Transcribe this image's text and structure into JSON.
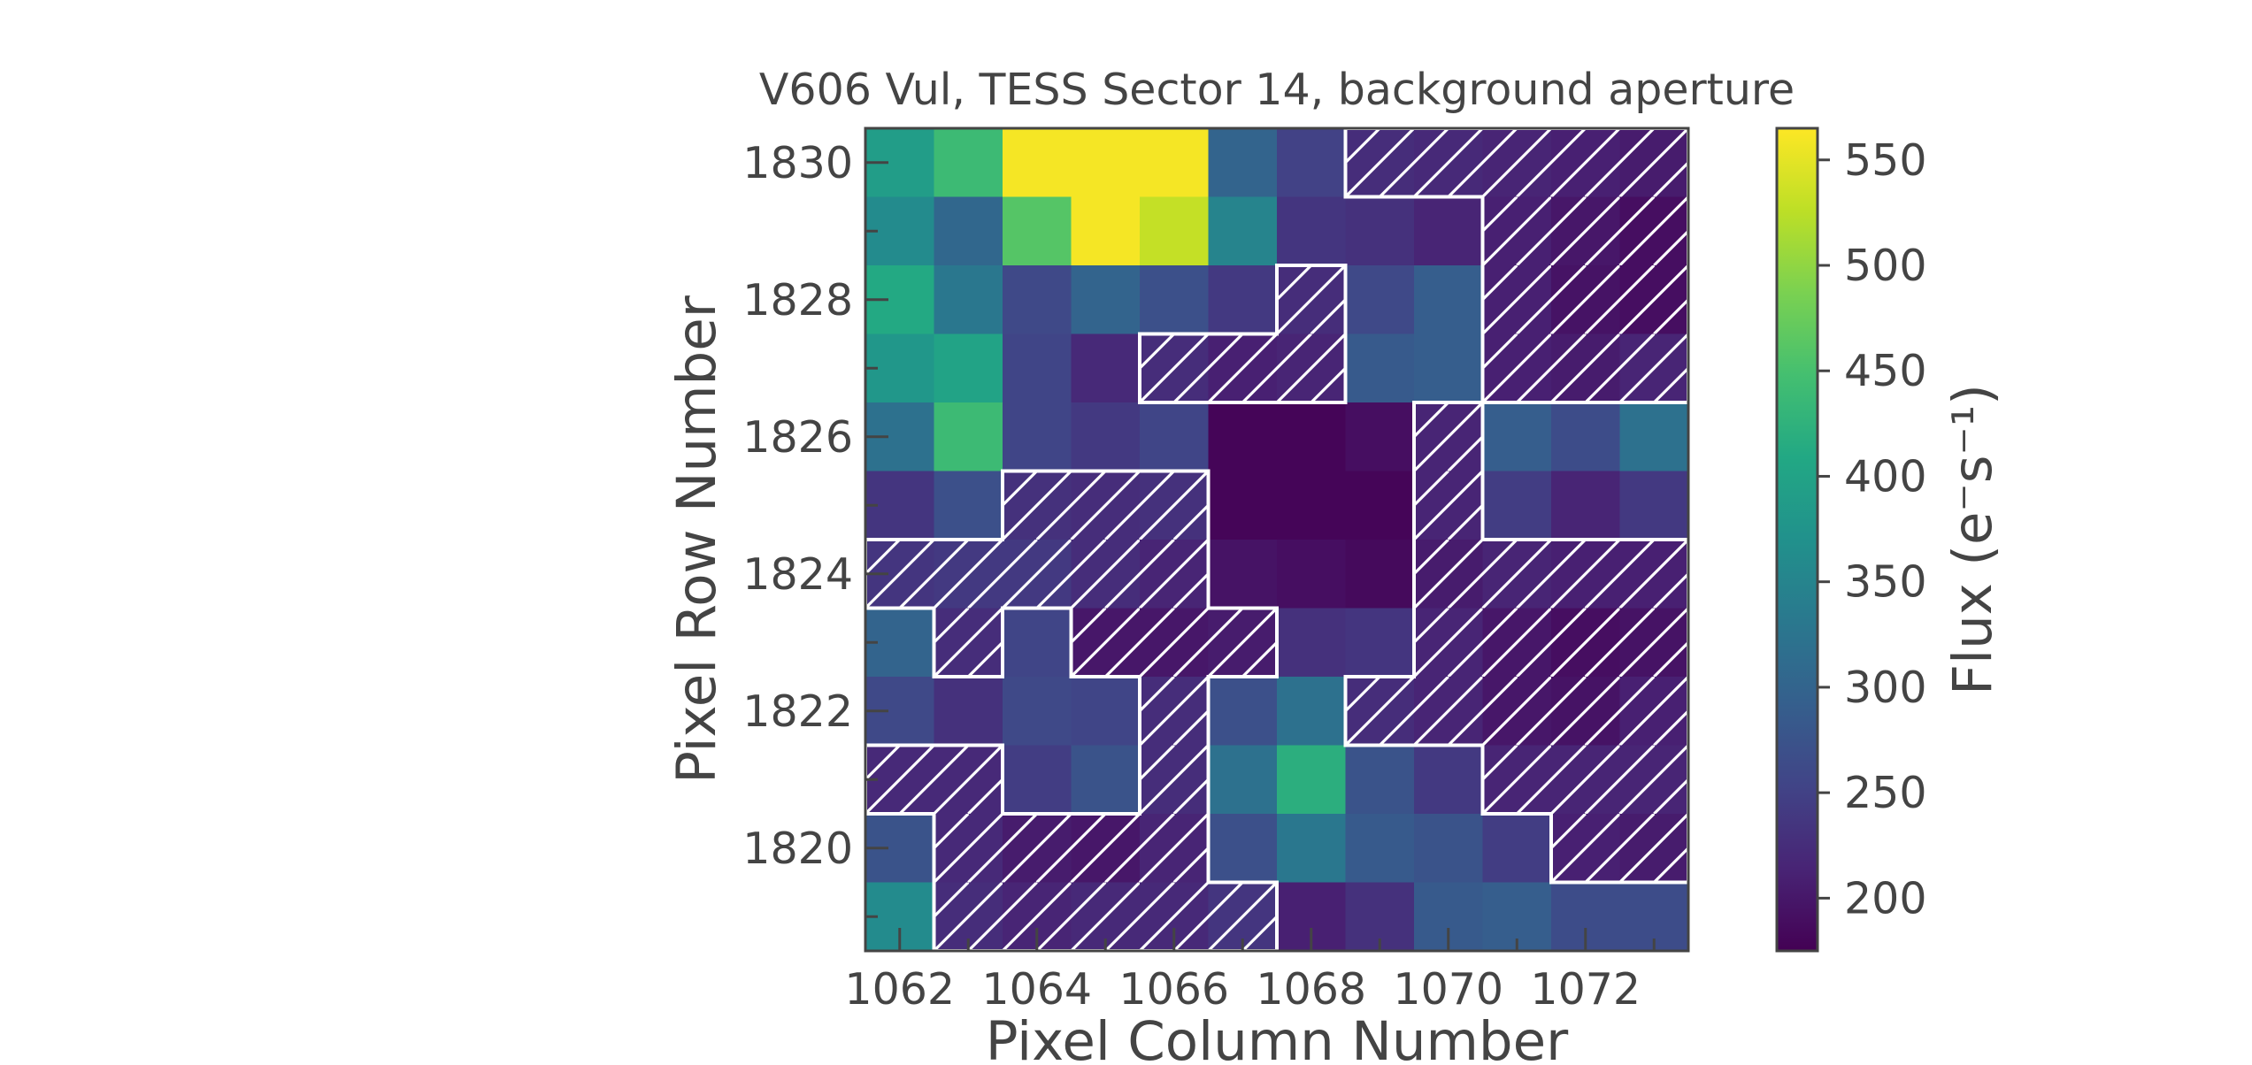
{
  "chart_data": {
    "type": "heatmap",
    "title": "V606 Vul, TESS Sector 14, background aperture",
    "xlabel": "Pixel Column Number",
    "ylabel": "Pixel Row Number",
    "colorbar_label": "Flux (e⁻s⁻¹)",
    "colormap": "viridis",
    "columns": [
      1062,
      1063,
      1064,
      1065,
      1066,
      1067,
      1068,
      1069,
      1070,
      1071,
      1072,
      1073
    ],
    "rows_top_to_bottom": [
      1830,
      1829,
      1828,
      1827,
      1826,
      1825,
      1824,
      1823,
      1822,
      1821,
      1820,
      1819
    ],
    "xticks": [
      1062,
      1064,
      1066,
      1068,
      1070,
      1072
    ],
    "yticks": [
      1830,
      1828,
      1826,
      1824,
      1822,
      1820
    ],
    "colorbar_ticks": [
      200,
      250,
      300,
      350,
      400,
      450,
      500,
      550
    ],
    "vmin": 175,
    "vmax": 565,
    "grid": false,
    "flux": [
      [
        390,
        440,
        560,
        560,
        560,
        300,
        250,
        225,
        220,
        215,
        210,
        205
      ],
      [
        360,
        305,
        460,
        560,
        530,
        350,
        235,
        230,
        215,
        210,
        200,
        190
      ],
      [
        410,
        330,
        260,
        300,
        270,
        240,
        225,
        260,
        290,
        210,
        195,
        190
      ],
      [
        380,
        400,
        255,
        220,
        225,
        210,
        215,
        285,
        290,
        210,
        205,
        215
      ],
      [
        320,
        440,
        255,
        240,
        255,
        180,
        180,
        190,
        215,
        290,
        265,
        320
      ],
      [
        235,
        270,
        230,
        225,
        230,
        180,
        180,
        180,
        215,
        245,
        215,
        240
      ],
      [
        235,
        240,
        240,
        225,
        215,
        195,
        190,
        185,
        205,
        215,
        210,
        210
      ],
      [
        300,
        225,
        255,
        200,
        200,
        205,
        230,
        235,
        215,
        200,
        190,
        195
      ],
      [
        260,
        230,
        260,
        255,
        225,
        270,
        320,
        225,
        215,
        200,
        195,
        210
      ],
      [
        220,
        220,
        245,
        275,
        225,
        320,
        420,
        275,
        240,
        215,
        215,
        215
      ],
      [
        275,
        220,
        205,
        200,
        215,
        270,
        330,
        285,
        275,
        245,
        210,
        205
      ],
      [
        360,
        225,
        215,
        220,
        220,
        235,
        210,
        230,
        285,
        290,
        265,
        265
      ]
    ],
    "hatched": [
      [
        0,
        0,
        0,
        0,
        0,
        0,
        0,
        1,
        1,
        1,
        1,
        1
      ],
      [
        0,
        0,
        0,
        0,
        0,
        0,
        0,
        0,
        0,
        1,
        1,
        1
      ],
      [
        0,
        0,
        0,
        0,
        0,
        0,
        1,
        0,
        0,
        1,
        1,
        1
      ],
      [
        0,
        0,
        0,
        0,
        1,
        1,
        1,
        0,
        0,
        1,
        1,
        1
      ],
      [
        0,
        0,
        0,
        0,
        0,
        0,
        0,
        0,
        1,
        0,
        0,
        0
      ],
      [
        0,
        0,
        1,
        1,
        1,
        0,
        0,
        0,
        1,
        0,
        0,
        0
      ],
      [
        1,
        1,
        1,
        1,
        1,
        0,
        0,
        0,
        1,
        1,
        1,
        1
      ],
      [
        0,
        1,
        0,
        1,
        1,
        1,
        0,
        0,
        1,
        1,
        1,
        1
      ],
      [
        0,
        0,
        0,
        0,
        1,
        0,
        0,
        1,
        1,
        1,
        1,
        1
      ],
      [
        1,
        1,
        0,
        0,
        1,
        0,
        0,
        0,
        0,
        1,
        1,
        1
      ],
      [
        0,
        1,
        1,
        1,
        1,
        0,
        0,
        0,
        0,
        0,
        1,
        1
      ],
      [
        0,
        1,
        1,
        1,
        1,
        1,
        0,
        0,
        0,
        0,
        0,
        0
      ]
    ]
  }
}
